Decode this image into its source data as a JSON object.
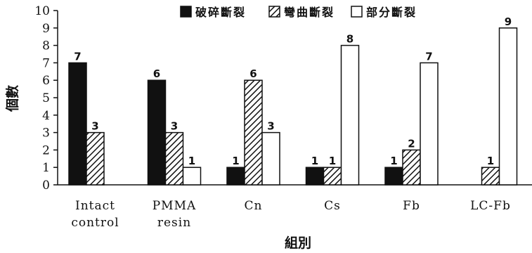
{
  "chart_data": {
    "type": "bar",
    "title": "",
    "xlabel": "組別",
    "ylabel": "個數",
    "ylim": [
      0,
      10
    ],
    "yticks": [
      "0",
      "1",
      "2",
      "3",
      "4",
      "5",
      "6",
      "7",
      "8",
      "9",
      "10"
    ],
    "grid": false,
    "legend_position": "top",
    "categories": [
      [
        "Intact",
        "control"
      ],
      [
        "PMMA",
        "resin"
      ],
      [
        "Cn"
      ],
      [
        "Cs"
      ],
      [
        "Fb"
      ],
      [
        "LC-Fb"
      ]
    ],
    "series": [
      {
        "name": "破碎斷裂",
        "pattern": "solid",
        "color": "#111111",
        "values": [
          7,
          6,
          1,
          1,
          1,
          null
        ]
      },
      {
        "name": "彎曲斷裂",
        "pattern": "hatch",
        "color": "#111111",
        "values": [
          3,
          3,
          6,
          1,
          2,
          1
        ]
      },
      {
        "name": "部分斷裂",
        "pattern": "open",
        "color": "#ffffff",
        "values": [
          null,
          1,
          3,
          8,
          7,
          9
        ]
      }
    ]
  }
}
